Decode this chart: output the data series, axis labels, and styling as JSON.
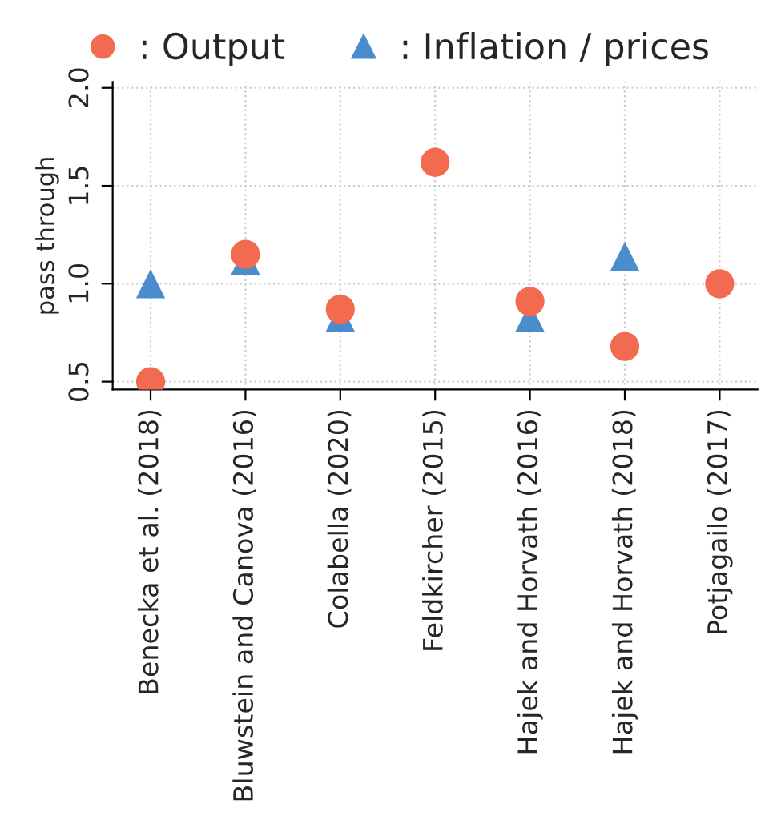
{
  "chart_data": {
    "type": "scatter",
    "ylabel": "pass through",
    "categories": [
      "Benecka et al. (2018)",
      "Bluwstein and Canova (2016)",
      "Colabella (2020)",
      "Feldkircher (2015)",
      "Hajek and Horvath (2016)",
      "Hajek and Horvath (2018)",
      "Potjagailo (2017)"
    ],
    "series": [
      {
        "name": ": Inflation / prices",
        "color": "#4a8ccc",
        "marker": "triangle",
        "values": [
          1.0,
          1.12,
          0.83,
          null,
          0.83,
          1.14,
          null
        ]
      },
      {
        "name": ": Output",
        "color": "#f26b50",
        "marker": "circle",
        "values": [
          0.5,
          1.15,
          0.87,
          1.62,
          0.91,
          0.68,
          1.0
        ]
      }
    ],
    "ylim": [
      0.46,
      2.03
    ],
    "yticks": [
      0.5,
      {
        "value": 1,
        "label": "1.0"
      },
      1.5,
      {
        "value": 2,
        "label": "2.0"
      }
    ],
    "grid": true,
    "legend": "top"
  }
}
